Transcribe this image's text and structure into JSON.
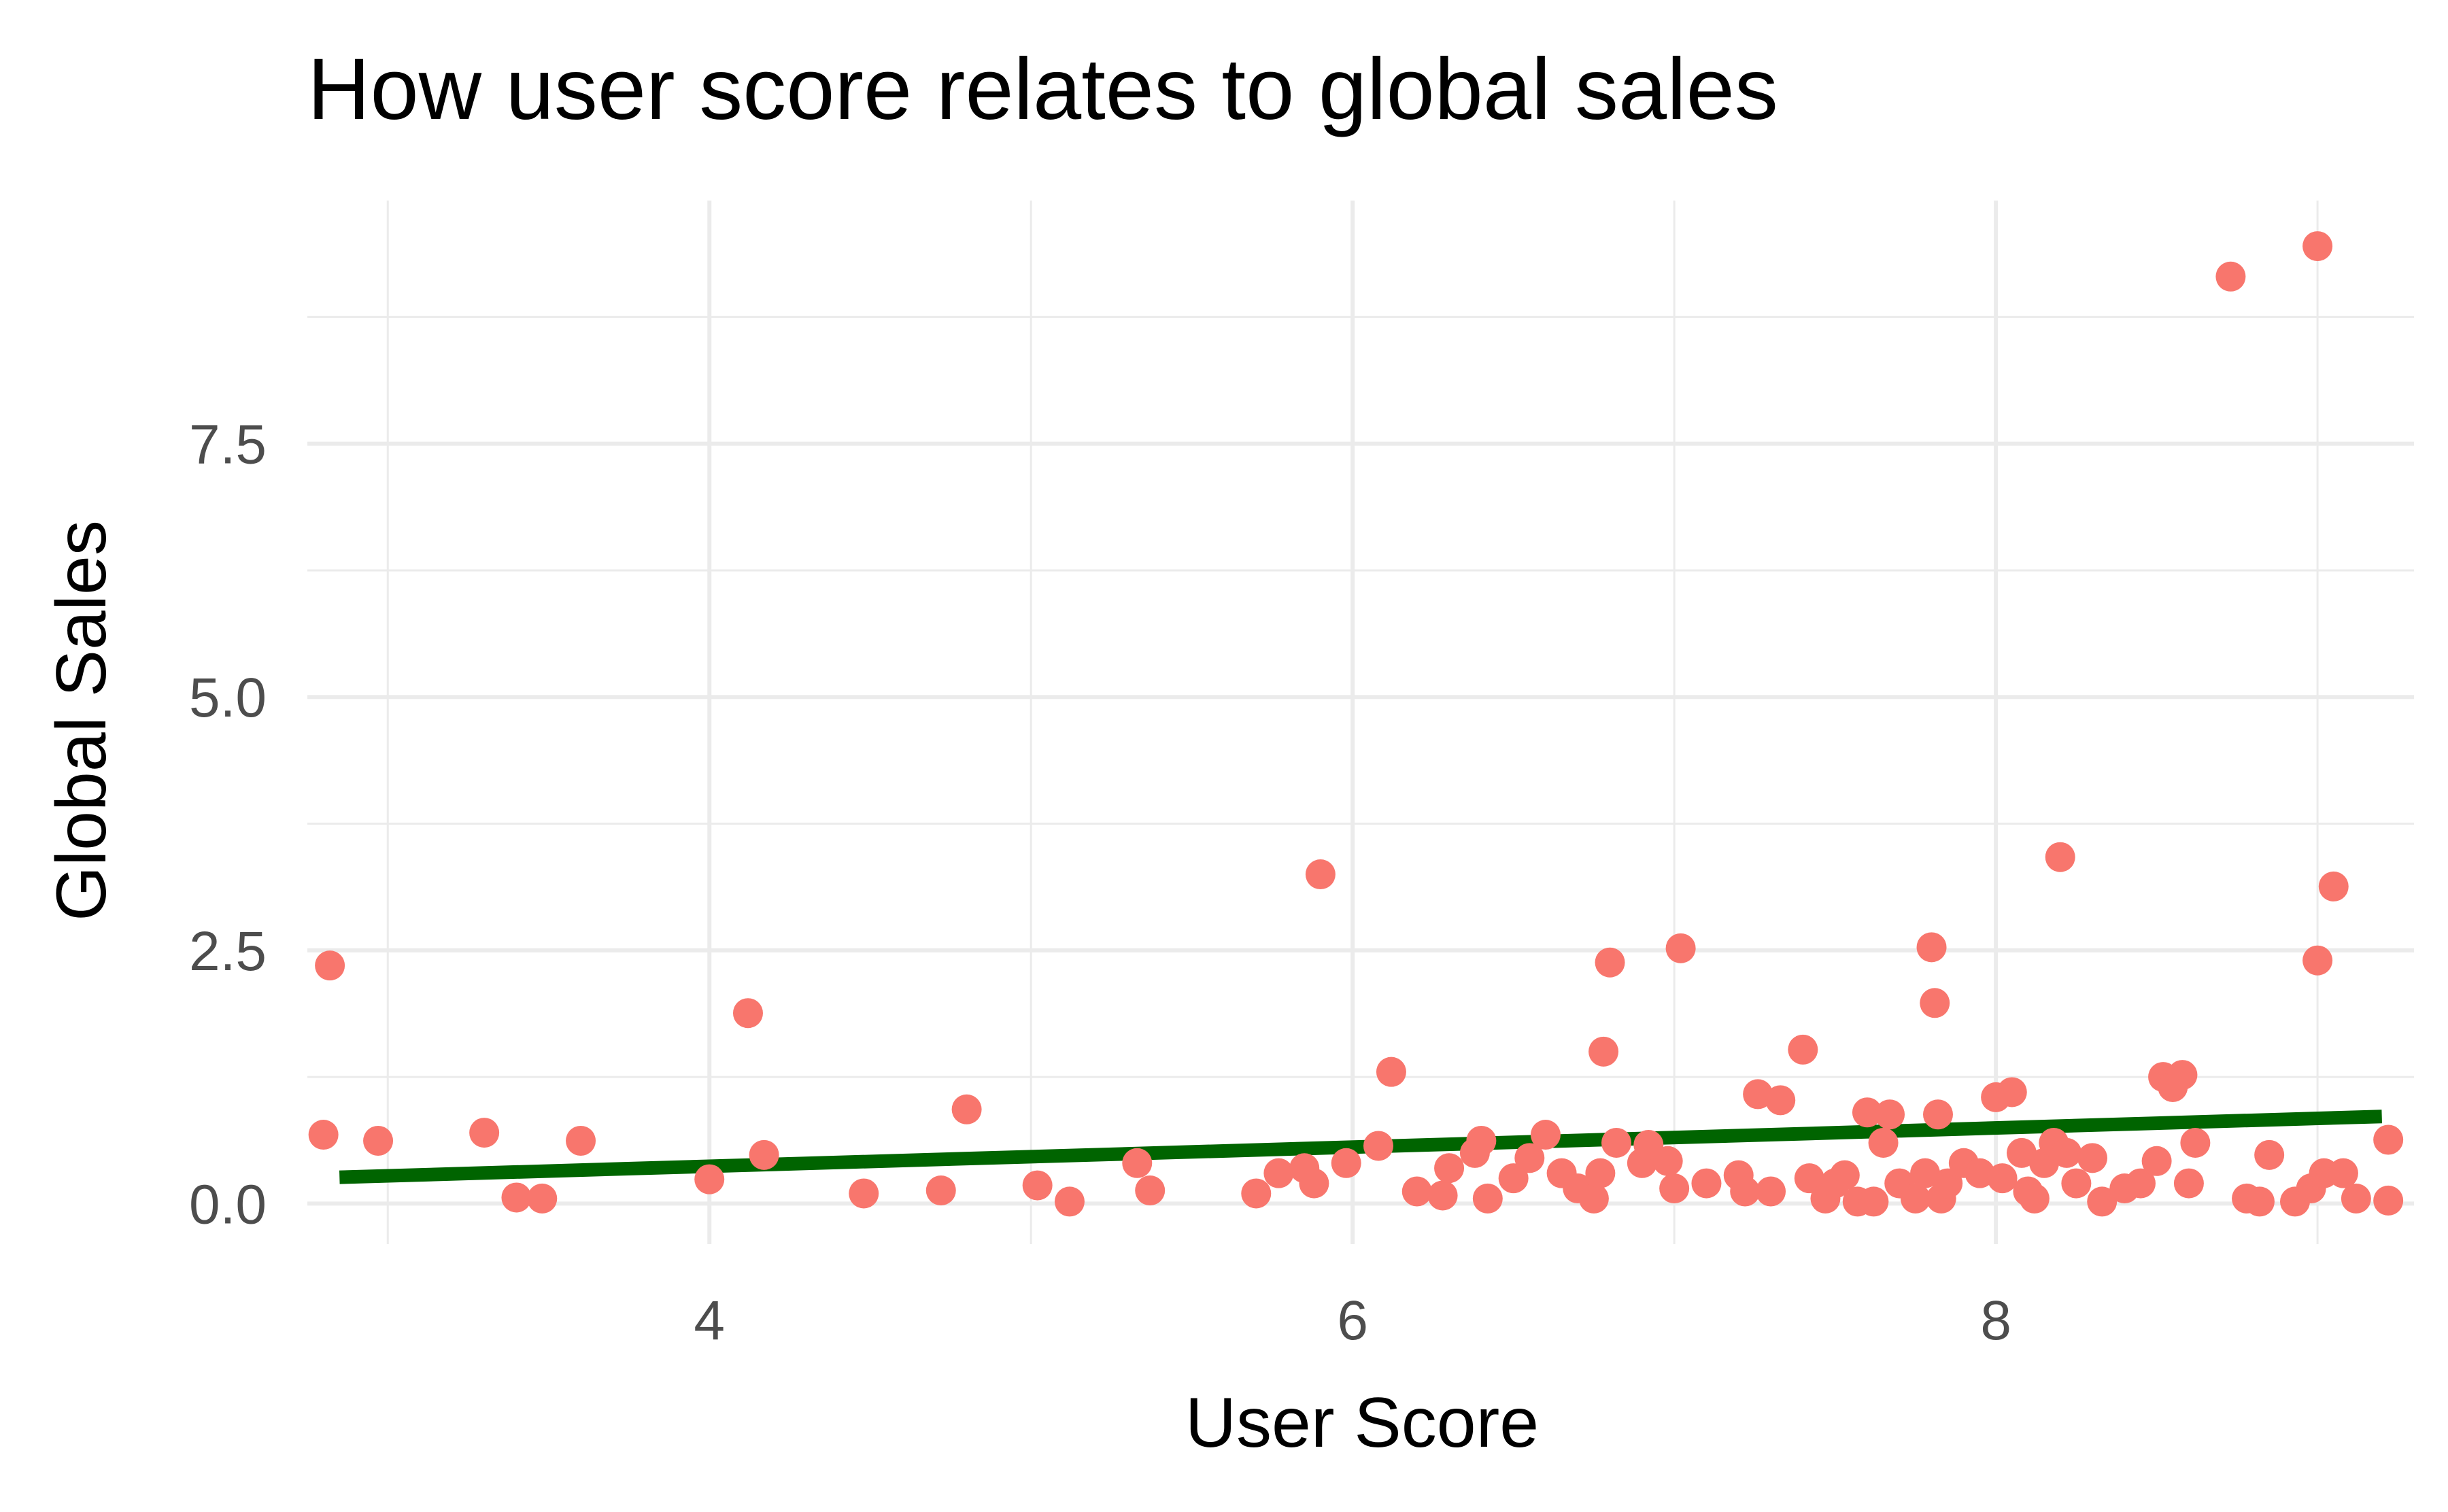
{
  "chart_data": {
    "type": "scatter",
    "title": "How user score relates to global sales",
    "xlabel": "User Score",
    "ylabel": "Global Sales",
    "xlim": [
      2.75,
      9.3
    ],
    "ylim": [
      -0.4,
      9.9
    ],
    "x_ticks": [
      4,
      6,
      8
    ],
    "x_tick_labels": [
      "4",
      "6",
      "8"
    ],
    "x_minor_gridlines": [
      3,
      5,
      7,
      9
    ],
    "y_ticks": [
      0,
      2.5,
      5,
      7.5
    ],
    "y_tick_labels": [
      "0.0",
      "2.5",
      "5.0",
      "7.5"
    ],
    "y_minor_gridlines": [
      1.25,
      3.75,
      6.25,
      8.75
    ],
    "grid": true,
    "legend": "none",
    "point_color": "#F8766D",
    "trend_line_color": "#006400",
    "trend_line": {
      "x": [
        2.85,
        9.2
      ],
      "y": [
        0.26,
        0.86
      ]
    },
    "points": [
      [
        2.8,
        0.68
      ],
      [
        2.82,
        2.35
      ],
      [
        2.97,
        0.62
      ],
      [
        3.3,
        0.7
      ],
      [
        3.4,
        0.06
      ],
      [
        3.48,
        0.05
      ],
      [
        3.6,
        0.62
      ],
      [
        4.0,
        0.24
      ],
      [
        4.12,
        1.88
      ],
      [
        4.17,
        0.48
      ],
      [
        4.48,
        0.1
      ],
      [
        4.72,
        0.13
      ],
      [
        4.8,
        0.93
      ],
      [
        5.02,
        0.18
      ],
      [
        5.12,
        0.02
      ],
      [
        5.33,
        0.4
      ],
      [
        5.37,
        0.13
      ],
      [
        5.7,
        0.1
      ],
      [
        5.77,
        0.3
      ],
      [
        5.85,
        0.35
      ],
      [
        5.88,
        0.2
      ],
      [
        5.9,
        3.25
      ],
      [
        5.98,
        0.4
      ],
      [
        6.08,
        0.57
      ],
      [
        6.12,
        1.3
      ],
      [
        6.2,
        0.12
      ],
      [
        6.28,
        0.08
      ],
      [
        6.3,
        0.35
      ],
      [
        6.38,
        0.5
      ],
      [
        6.4,
        0.62
      ],
      [
        6.42,
        0.05
      ],
      [
        6.5,
        0.25
      ],
      [
        6.55,
        0.45
      ],
      [
        6.6,
        0.68
      ],
      [
        6.65,
        0.3
      ],
      [
        6.7,
        0.15
      ],
      [
        6.75,
        0.05
      ],
      [
        6.77,
        0.3
      ],
      [
        6.78,
        1.5
      ],
      [
        6.8,
        2.38
      ],
      [
        6.82,
        0.6
      ],
      [
        6.9,
        0.4
      ],
      [
        6.92,
        0.58
      ],
      [
        6.98,
        0.42
      ],
      [
        7.0,
        0.15
      ],
      [
        7.02,
        2.52
      ],
      [
        7.1,
        0.2
      ],
      [
        7.2,
        0.28
      ],
      [
        7.22,
        0.12
      ],
      [
        7.26,
        1.08
      ],
      [
        7.3,
        0.12
      ],
      [
        7.33,
        1.02
      ],
      [
        7.4,
        1.52
      ],
      [
        7.42,
        0.25
      ],
      [
        7.47,
        0.05
      ],
      [
        7.5,
        0.2
      ],
      [
        7.53,
        0.28
      ],
      [
        7.57,
        0.02
      ],
      [
        7.6,
        0.9
      ],
      [
        7.62,
        0.02
      ],
      [
        7.65,
        0.6
      ],
      [
        7.67,
        0.88
      ],
      [
        7.7,
        0.2
      ],
      [
        7.75,
        0.05
      ],
      [
        7.78,
        0.3
      ],
      [
        7.8,
        2.53
      ],
      [
        7.81,
        1.98
      ],
      [
        7.82,
        0.88
      ],
      [
        7.83,
        0.05
      ],
      [
        7.85,
        0.2
      ],
      [
        7.9,
        0.4
      ],
      [
        7.95,
        0.3
      ],
      [
        8.0,
        1.05
      ],
      [
        8.02,
        0.25
      ],
      [
        8.05,
        1.1
      ],
      [
        8.08,
        0.5
      ],
      [
        8.1,
        0.12
      ],
      [
        8.12,
        0.05
      ],
      [
        8.15,
        0.4
      ],
      [
        8.18,
        0.6
      ],
      [
        8.2,
        3.42
      ],
      [
        8.22,
        0.5
      ],
      [
        8.25,
        0.2
      ],
      [
        8.3,
        0.45
      ],
      [
        8.33,
        0.02
      ],
      [
        8.4,
        0.15
      ],
      [
        8.45,
        0.2
      ],
      [
        8.5,
        0.42
      ],
      [
        8.52,
        1.25
      ],
      [
        8.55,
        1.15
      ],
      [
        8.58,
        1.27
      ],
      [
        8.6,
        0.2
      ],
      [
        8.62,
        0.6
      ],
      [
        8.73,
        9.15
      ],
      [
        8.78,
        0.05
      ],
      [
        8.82,
        0.02
      ],
      [
        8.85,
        0.48
      ],
      [
        8.93,
        0.02
      ],
      [
        8.98,
        0.15
      ],
      [
        9.0,
        2.4
      ],
      [
        9.02,
        0.3
      ],
      [
        9.0,
        9.45
      ],
      [
        9.05,
        3.13
      ],
      [
        9.08,
        0.3
      ],
      [
        9.12,
        0.05
      ],
      [
        9.22,
        0.63
      ],
      [
        9.22,
        0.03
      ]
    ]
  }
}
